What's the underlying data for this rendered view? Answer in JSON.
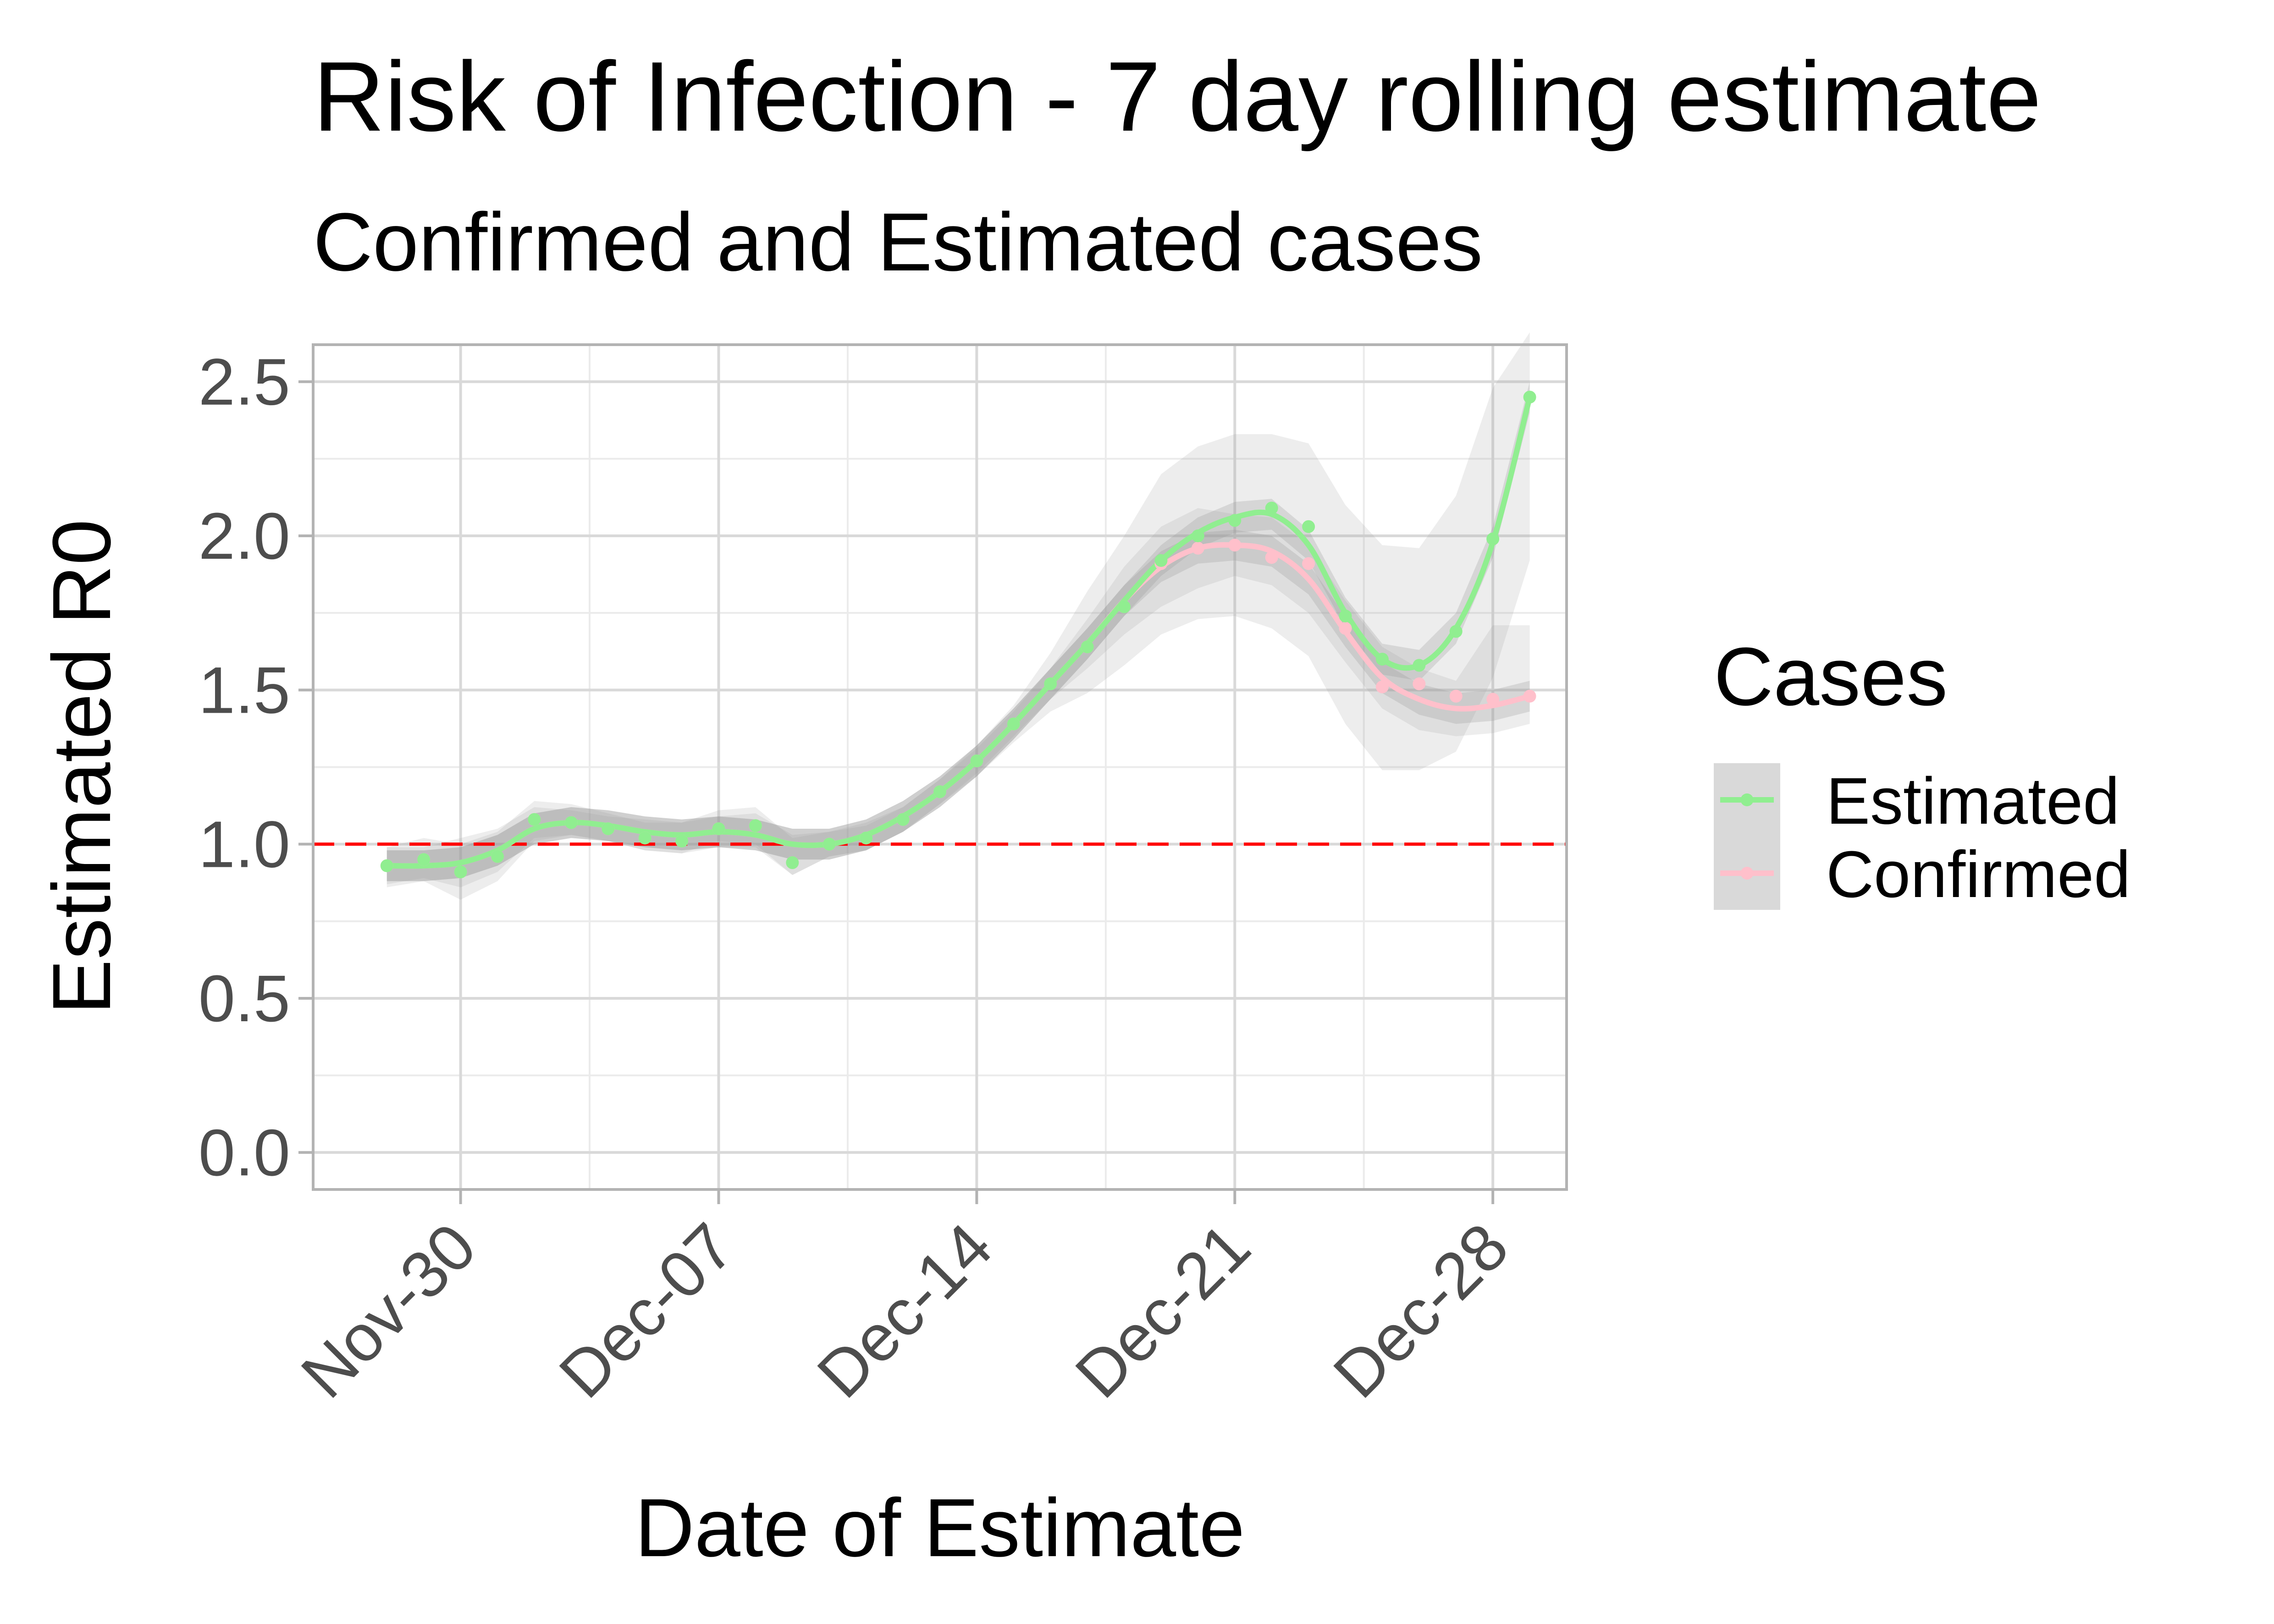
{
  "chart_data": {
    "type": "line",
    "title": "Risk of Infection - 7 day rolling estimate",
    "subtitle": "Confirmed and Estimated cases",
    "xlabel": "Date of Estimate",
    "ylabel": "Estimated R0",
    "x_tick_labels": [
      "Nov-30",
      "Dec-07",
      "Dec-14",
      "Dec-21",
      "Dec-28"
    ],
    "x_tick_dates": [
      "2020-11-30",
      "2020-12-07",
      "2020-12-14",
      "2020-12-21",
      "2020-12-28"
    ],
    "xlim": [
      "2020-11-26",
      "2020-12-30"
    ],
    "ylim": [
      -0.12,
      2.62
    ],
    "y_ticks": [
      0.0,
      0.5,
      1.0,
      1.5,
      2.0,
      2.5
    ],
    "y_tick_labels": [
      "0.0",
      "0.5",
      "1.0",
      "1.5",
      "2.0",
      "2.5"
    ],
    "reference_line": {
      "y": 1.0,
      "style": "dashed",
      "color": "#ff0000"
    },
    "grid": true,
    "legend": {
      "title": "Cases",
      "position": "right",
      "entries": [
        "Estimated",
        "Confirmed"
      ]
    },
    "x": [
      "2020-11-28",
      "2020-11-29",
      "2020-11-30",
      "2020-12-01",
      "2020-12-02",
      "2020-12-03",
      "2020-12-04",
      "2020-12-05",
      "2020-12-06",
      "2020-12-07",
      "2020-12-08",
      "2020-12-09",
      "2020-12-10",
      "2020-12-11",
      "2020-12-12",
      "2020-12-13",
      "2020-12-14",
      "2020-12-15",
      "2020-12-16",
      "2020-12-17",
      "2020-12-18",
      "2020-12-19",
      "2020-12-20",
      "2020-12-21",
      "2020-12-22",
      "2020-12-23",
      "2020-12-24",
      "2020-12-25",
      "2020-12-26",
      "2020-12-27",
      "2020-12-28",
      "2020-12-29"
    ],
    "series": [
      {
        "name": "Estimated",
        "color": "#90ee90",
        "values": [
          0.93,
          0.95,
          0.91,
          0.96,
          1.08,
          1.07,
          1.05,
          1.02,
          1.01,
          1.05,
          1.06,
          0.94,
          1.0,
          1.02,
          1.08,
          1.17,
          1.27,
          1.39,
          1.52,
          1.64,
          1.77,
          1.92,
          2.0,
          2.05,
          2.09,
          2.03,
          1.74,
          1.6,
          1.58,
          1.69,
          1.99,
          2.45
        ],
        "smooth": [
          0.93,
          0.93,
          0.94,
          0.98,
          1.05,
          1.07,
          1.06,
          1.04,
          1.03,
          1.04,
          1.03,
          1.0,
          1.0,
          1.03,
          1.09,
          1.17,
          1.27,
          1.39,
          1.52,
          1.65,
          1.79,
          1.92,
          2.01,
          2.06,
          2.07,
          1.97,
          1.75,
          1.6,
          1.58,
          1.7,
          1.98,
          2.45
        ],
        "band_low": [
          0.86,
          0.88,
          0.82,
          0.88,
          1.01,
          1.03,
          1.01,
          0.98,
          0.97,
          0.99,
          0.99,
          0.93,
          0.96,
          0.99,
          1.05,
          1.13,
          1.22,
          1.33,
          1.43,
          1.49,
          1.58,
          1.68,
          1.73,
          1.74,
          1.7,
          1.61,
          1.39,
          1.24,
          1.24,
          1.3,
          1.54,
          1.92
        ],
        "band_high": [
          0.99,
          1.02,
          1.0,
          1.04,
          1.14,
          1.13,
          1.1,
          1.07,
          1.07,
          1.11,
          1.12,
          1.02,
          1.04,
          1.07,
          1.12,
          1.21,
          1.32,
          1.45,
          1.62,
          1.82,
          2.0,
          2.2,
          2.29,
          2.33,
          2.33,
          2.3,
          2.1,
          1.97,
          1.96,
          2.13,
          2.48,
          2.66
        ]
      },
      {
        "name": "Confirmed",
        "color": "#ffc0cb",
        "values": [
          0.93,
          0.95,
          0.91,
          0.96,
          1.08,
          1.07,
          1.05,
          1.02,
          1.01,
          1.05,
          1.06,
          0.94,
          1.0,
          1.02,
          1.08,
          1.17,
          1.27,
          1.39,
          1.52,
          1.64,
          1.77,
          1.91,
          1.96,
          1.97,
          1.93,
          1.91,
          1.7,
          1.51,
          1.52,
          1.48,
          1.47,
          1.48
        ],
        "smooth": [
          0.93,
          0.93,
          0.94,
          0.98,
          1.05,
          1.07,
          1.06,
          1.04,
          1.03,
          1.04,
          1.03,
          1.0,
          1.0,
          1.03,
          1.09,
          1.17,
          1.27,
          1.39,
          1.52,
          1.65,
          1.79,
          1.9,
          1.96,
          1.97,
          1.95,
          1.86,
          1.69,
          1.54,
          1.47,
          1.44,
          1.45,
          1.48
        ],
        "band_low": [
          0.87,
          0.89,
          0.86,
          0.91,
          1.02,
          1.04,
          1.02,
          1.0,
          0.99,
          1.01,
          1.0,
          0.97,
          0.97,
          1.0,
          1.06,
          1.14,
          1.24,
          1.36,
          1.47,
          1.57,
          1.68,
          1.77,
          1.83,
          1.87,
          1.84,
          1.75,
          1.59,
          1.44,
          1.37,
          1.35,
          1.36,
          1.39
        ],
        "band_high": [
          0.99,
          0.97,
          1.02,
          1.05,
          1.08,
          1.1,
          1.09,
          1.08,
          1.07,
          1.07,
          1.06,
          1.03,
          1.03,
          1.06,
          1.12,
          1.2,
          1.3,
          1.42,
          1.57,
          1.73,
          1.9,
          2.03,
          2.09,
          2.07,
          2.06,
          1.97,
          1.79,
          1.64,
          1.57,
          1.53,
          1.71,
          1.71
        ]
      }
    ]
  }
}
